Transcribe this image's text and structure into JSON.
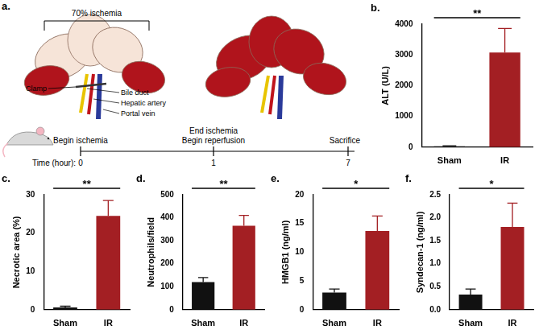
{
  "diagram": {
    "panel": "a.",
    "bracket_label": "70% ischemia",
    "vessel_labels": [
      "Clamp",
      "Bile duct",
      "Hepatic artery",
      "Portal vein"
    ],
    "timeline": {
      "axis_label": "Time (hour):",
      "events": [
        {
          "time": 0,
          "label": [
            "Begin ischemia"
          ]
        },
        {
          "time": 1,
          "label": [
            "End ischemia",
            "Begin reperfusion"
          ]
        },
        {
          "time": 7,
          "label": [
            "Sacrifice"
          ]
        }
      ]
    }
  },
  "chart_data": [
    {
      "panel": "b.",
      "type": "bar",
      "y_label": "ALT (U/L)",
      "categories": [
        "Sham",
        "IR"
      ],
      "values": [
        30,
        3080
      ],
      "errors": [
        12,
        780
      ],
      "colors": [
        "#111111",
        "#a31f23"
      ],
      "ylim": [
        0,
        4000
      ],
      "yticks": [
        0,
        1000,
        2000,
        3000,
        4000
      ],
      "grid": false,
      "significance": "**"
    },
    {
      "panel": "c.",
      "type": "bar",
      "y_label": "Necrotic area (%)",
      "categories": [
        "Sham",
        "IR"
      ],
      "values": [
        0.6,
        24.5
      ],
      "errors": [
        0.3,
        4.0
      ],
      "colors": [
        "#111111",
        "#a31f23"
      ],
      "ylim": [
        0,
        30
      ],
      "yticks": [
        0,
        10,
        20,
        30
      ],
      "grid": false,
      "significance": "**"
    },
    {
      "panel": "d.",
      "type": "bar",
      "y_label": "Neutrophils/field",
      "categories": [
        "Sham",
        "IR"
      ],
      "values": [
        120,
        365
      ],
      "errors": [
        20,
        45
      ],
      "colors": [
        "#111111",
        "#a31f23"
      ],
      "ylim": [
        0,
        500
      ],
      "yticks": [
        0,
        100,
        200,
        300,
        400,
        500
      ],
      "grid": false,
      "significance": "**"
    },
    {
      "panel": "e.",
      "type": "bar",
      "y_label": "HMGB1 (ng/ml)",
      "categories": [
        "Sham",
        "IR"
      ],
      "values": [
        3.0,
        13.7
      ],
      "errors": [
        0.6,
        2.6
      ],
      "colors": [
        "#111111",
        "#a31f23"
      ],
      "ylim": [
        0,
        20
      ],
      "yticks": [
        0,
        5,
        10,
        15,
        20
      ],
      "grid": false,
      "significance": "*"
    },
    {
      "panel": "f.",
      "type": "bar",
      "y_label": "Syndecan-1 (ng/ml)",
      "categories": [
        "Sham",
        "IR"
      ],
      "values": [
        0.33,
        1.8
      ],
      "errors": [
        0.12,
        0.52
      ],
      "colors": [
        "#111111",
        "#a31f23"
      ],
      "ylim": [
        0,
        2.5
      ],
      "yticks": [
        {
          "value": 0,
          "label": "0.0"
        },
        0.5,
        {
          "value": 1,
          "label": "1.0"
        },
        1.5,
        {
          "value": 2,
          "label": "2.0"
        },
        2.5
      ],
      "grid": false,
      "significance": "*"
    }
  ]
}
